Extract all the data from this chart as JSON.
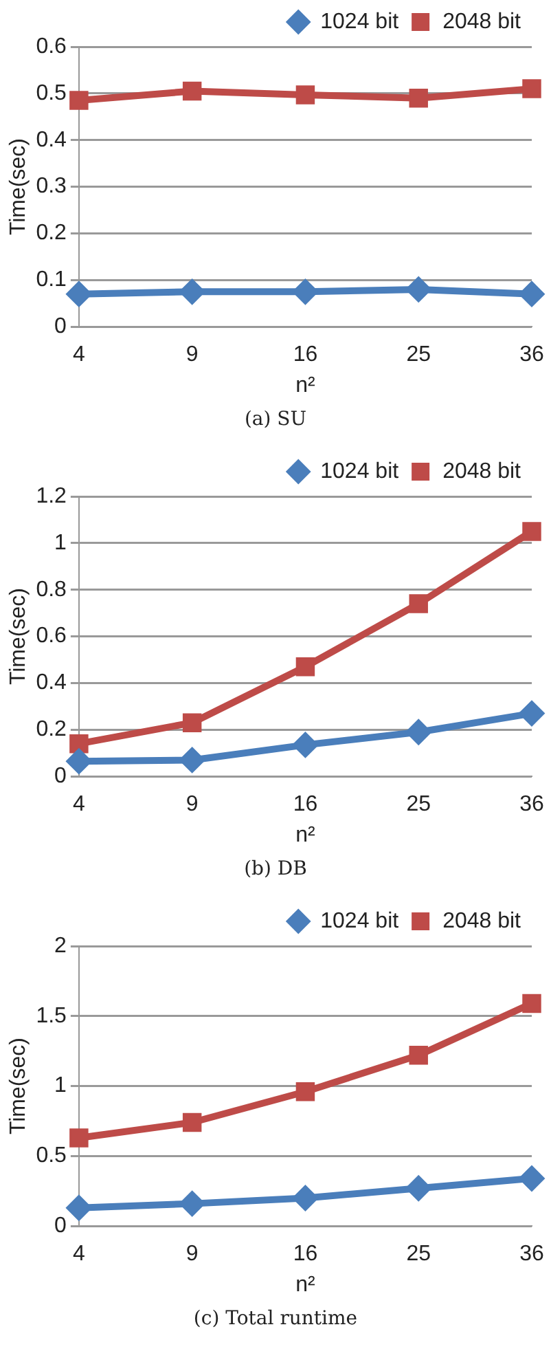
{
  "chart_data": [
    {
      "type": "line",
      "categories": [
        "4",
        "9",
        "16",
        "25",
        "36"
      ],
      "xlabel": "n²",
      "ylabel": "Time(sec)",
      "ylim": [
        0,
        0.6
      ],
      "yticks": [
        0,
        0.1,
        0.2,
        0.3,
        0.4,
        0.5,
        0.6
      ],
      "grid": "y",
      "legend": "top",
      "line_style": "solid",
      "annotations": [
        "(a) SU"
      ],
      "series": [
        {
          "name": "1024 bit",
          "color": "#4a7ebb",
          "marker": "diamond",
          "values": [
            0.07,
            0.075,
            0.075,
            0.08,
            0.07
          ]
        },
        {
          "name": "2048 bit",
          "color": "#be4b48",
          "marker": "square",
          "values": [
            0.485,
            0.505,
            0.497,
            0.49,
            0.51
          ]
        }
      ]
    },
    {
      "type": "line",
      "categories": [
        "4",
        "9",
        "16",
        "25",
        "36"
      ],
      "xlabel": "n²",
      "ylabel": "Time(sec)",
      "ylim": [
        0,
        1.2
      ],
      "yticks": [
        0,
        0.2,
        0.4,
        0.6,
        0.8,
        1,
        1.2
      ],
      "grid": "y",
      "legend": "top",
      "line_style": "solid",
      "annotations": [
        "(b) DB"
      ],
      "series": [
        {
          "name": "1024 bit",
          "color": "#4a7ebb",
          "marker": "diamond",
          "values": [
            0.065,
            0.07,
            0.135,
            0.19,
            0.27
          ]
        },
        {
          "name": "2048 bit",
          "color": "#be4b48",
          "marker": "square",
          "values": [
            0.14,
            0.23,
            0.47,
            0.74,
            1.05
          ]
        }
      ]
    },
    {
      "type": "line",
      "categories": [
        "4",
        "9",
        "16",
        "25",
        "36"
      ],
      "xlabel": "n²",
      "ylabel": "Time(sec)",
      "ylim": [
        0,
        2
      ],
      "yticks": [
        0,
        0.5,
        1,
        1.5,
        2
      ],
      "grid": "y",
      "legend": "top",
      "line_style": "solid",
      "annotations": [
        "(c) Total runtime"
      ],
      "series": [
        {
          "name": "1024 bit",
          "color": "#4a7ebb",
          "marker": "diamond",
          "values": [
            0.13,
            0.16,
            0.2,
            0.27,
            0.34
          ]
        },
        {
          "name": "2048 bit",
          "color": "#be4b48",
          "marker": "square",
          "values": [
            0.63,
            0.74,
            0.96,
            1.22,
            1.59
          ]
        }
      ]
    }
  ]
}
